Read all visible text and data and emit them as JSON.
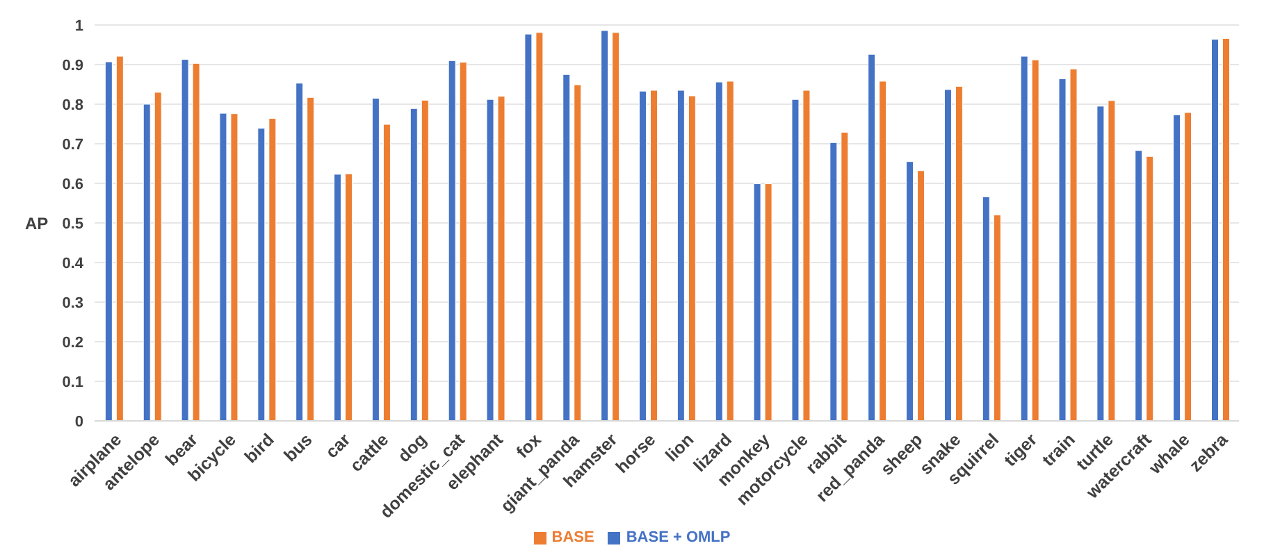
{
  "chart_data": {
    "type": "bar",
    "ylabel": "AP",
    "categories": [
      "airplane",
      "antelope",
      "bear",
      "bicycle",
      "bird",
      "bus",
      "car",
      "cattle",
      "dog",
      "domestic_cat",
      "elephant",
      "fox",
      "giant_panda",
      "hamster",
      "horse",
      "lion",
      "lizard",
      "monkey",
      "motorcycle",
      "rabbit",
      "red_panda",
      "sheep",
      "snake",
      "squirrel",
      "tiger",
      "train",
      "turtle",
      "watercraft",
      "whale",
      "zebra"
    ],
    "series": [
      {
        "name": "BASE + OMLP",
        "color": "#4472c4",
        "values": [
          0.907,
          0.8,
          0.913,
          0.777,
          0.739,
          0.853,
          0.623,
          0.815,
          0.789,
          0.91,
          0.812,
          0.977,
          0.875,
          0.986,
          0.833,
          0.835,
          0.856,
          0.599,
          0.812,
          0.703,
          0.926,
          0.655,
          0.837,
          0.566,
          0.921,
          0.864,
          0.795,
          0.683,
          0.773,
          0.964
        ]
      },
      {
        "name": "BASE",
        "color": "#ed7d31",
        "values": [
          0.921,
          0.83,
          0.903,
          0.776,
          0.764,
          0.817,
          0.624,
          0.749,
          0.81,
          0.906,
          0.82,
          0.981,
          0.849,
          0.981,
          0.835,
          0.821,
          0.858,
          0.599,
          0.835,
          0.729,
          0.858,
          0.632,
          0.845,
          0.52,
          0.912,
          0.889,
          0.809,
          0.668,
          0.779,
          0.966
        ]
      }
    ],
    "ylim": [
      0,
      1
    ],
    "yticks": [
      0,
      0.1,
      0.2,
      0.3,
      0.4,
      0.5,
      0.6,
      0.7,
      0.8,
      0.9,
      1
    ],
    "grid": "y",
    "legend": "bottom"
  }
}
